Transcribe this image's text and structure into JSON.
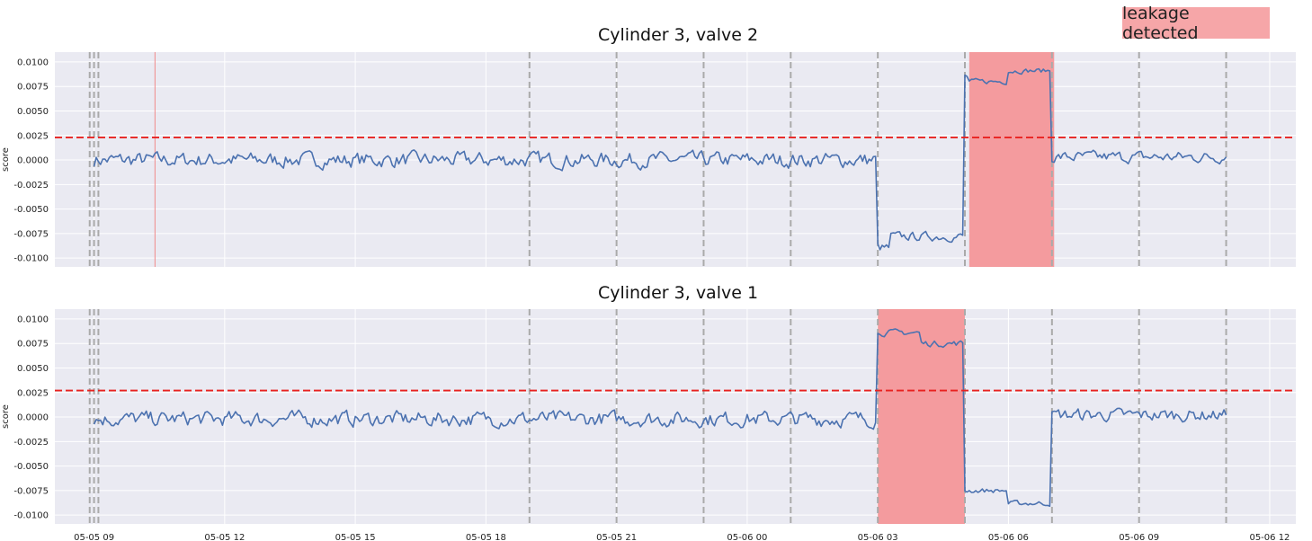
{
  "legend": {
    "label": "leakage detected",
    "color": "#f6a6a8"
  },
  "colors": {
    "background": "#eaeaf2",
    "grid": "#ffffff",
    "line": "#4c72b0",
    "threshold": "#e8211f",
    "event_line": "#aaaaaa",
    "span": "#f49b9e"
  },
  "x_ticks": [
    "05-05 09",
    "05-05 12",
    "05-05 15",
    "05-05 18",
    "05-05 21",
    "05-06 00",
    "05-06 03",
    "05-06 06",
    "05-06 09",
    "05-06 12"
  ],
  "y_ticks": [
    "0.0100",
    "0.0075",
    "0.0050",
    "0.0025",
    "0.0000",
    "-0.0025",
    "-0.0050",
    "-0.0075",
    "-0.0100"
  ],
  "chart_data": [
    {
      "type": "line",
      "title": "Cylinder 3, valve 2",
      "ylabel": "score",
      "xlabel": "",
      "x_unit": "hours since 05-05 00:00",
      "xlim": [
        8.1,
        36.6
      ],
      "ylim": [
        -0.0109,
        0.011
      ],
      "grid": true,
      "threshold": 0.0023,
      "events": [
        8.9,
        9.0,
        9.1,
        19.0,
        21.0,
        23.0,
        25.0,
        27.0,
        29.0,
        31.0,
        33.0,
        35.0
      ],
      "red_marker": 10.4,
      "leak_span": [
        29.1,
        31.05
      ],
      "series": [
        {
          "segments": [
            {
              "start": 9.0,
              "end": 27.0,
              "level": 0.0,
              "noise": 0.0012
            },
            {
              "start": 27.0,
              "end": 27.3,
              "level": -0.009,
              "noise": 0.0008
            },
            {
              "start": 27.3,
              "end": 29.0,
              "level": -0.0078,
              "noise": 0.0007
            },
            {
              "start": 29.0,
              "end": 29.1,
              "level": 0.0085,
              "noise": 0.0005
            },
            {
              "start": 29.1,
              "end": 30.0,
              "level": 0.008,
              "noise": 0.0004
            },
            {
              "start": 30.0,
              "end": 31.0,
              "level": 0.0091,
              "noise": 0.0004
            },
            {
              "start": 31.0,
              "end": 35.0,
              "level": 0.0003,
              "noise": 0.0009
            }
          ]
        }
      ]
    },
    {
      "type": "line",
      "title": "Cylinder 3, valve 1",
      "ylabel": "score",
      "xlabel": "",
      "x_unit": "hours since 05-05 00:00",
      "xlim": [
        8.1,
        36.6
      ],
      "ylim": [
        -0.0109,
        0.011
      ],
      "grid": true,
      "threshold": 0.0027,
      "events": [
        8.9,
        9.0,
        9.1,
        19.0,
        21.0,
        23.0,
        25.0,
        27.0,
        29.0,
        31.0,
        33.0,
        35.0
      ],
      "leak_span": [
        27.0,
        29.0
      ],
      "series": [
        {
          "segments": [
            {
              "start": 9.0,
              "end": 27.0,
              "level": -0.0002,
              "noise": 0.0012
            },
            {
              "start": 27.0,
              "end": 28.0,
              "level": 0.0086,
              "noise": 0.0005
            },
            {
              "start": 28.0,
              "end": 29.0,
              "level": 0.0075,
              "noise": 0.0005
            },
            {
              "start": 29.0,
              "end": 30.0,
              "level": -0.0075,
              "noise": 0.0004
            },
            {
              "start": 30.0,
              "end": 31.0,
              "level": -0.0088,
              "noise": 0.0004
            },
            {
              "start": 31.0,
              "end": 35.0,
              "level": 0.0002,
              "noise": 0.001
            }
          ]
        }
      ]
    }
  ]
}
